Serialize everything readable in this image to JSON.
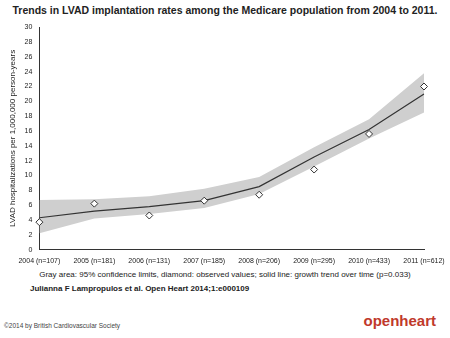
{
  "chart_data": {
    "type": "line",
    "title": "Trends in LVAD implantation rates among the Medicare population from 2004 to 2011.",
    "y_label": "LVAD hospitalizations per 1,000,000 person-years",
    "categories": [
      "2004 (n=107)",
      "2005 (n=181)",
      "2006 (n=131)",
      "2007 (n=185)",
      "2008 (n=206)",
      "2009 (n=295)",
      "2010 (n=433)",
      "2011 (n=612)"
    ],
    "series": [
      {
        "type": "area",
        "color": "#cfcfcf",
        "lower": [
          2.2,
          4.2,
          4.8,
          5.6,
          7.5,
          11.2,
          15.0,
          18.5
        ],
        "upper": [
          6.7,
          6.8,
          7.2,
          8.2,
          9.8,
          13.8,
          17.6,
          23.8
        ]
      },
      {
        "type": "line",
        "color": "#333333",
        "marker": "none",
        "line_style": "solid",
        "values": [
          4.3,
          5.2,
          5.8,
          6.6,
          8.5,
          12.5,
          16.2,
          21.0
        ]
      },
      {
        "type": "line",
        "color": "#333333",
        "marker": "diamond",
        "line_style": "none",
        "values": [
          3.7,
          6.2,
          4.6,
          6.6,
          7.4,
          10.8,
          15.6,
          22.0
        ]
      }
    ],
    "ylim": [
      0,
      30
    ],
    "yticks": [
      0,
      2,
      4,
      6,
      8,
      10,
      12,
      14,
      16,
      18,
      20,
      22,
      24,
      26,
      28,
      30
    ],
    "grid": false
  },
  "footer": {
    "caption": "Gray area: 95% confidence limits, diamond: observed values; solid line: growth trend over time (p=0.033)",
    "source": "Julianna F Lampropulos et al. Open Heart 2014;1:e000109",
    "copyright": "©2014 by British Cardiovascular Society",
    "logo": "openheart"
  }
}
